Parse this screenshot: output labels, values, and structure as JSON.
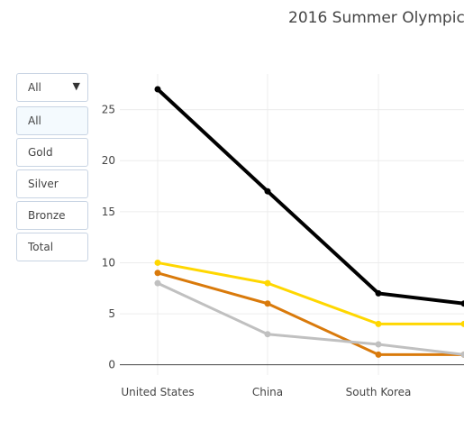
{
  "title": "2016 Summer Olympic",
  "dropdown": {
    "selected": "All",
    "options": [
      "All",
      "Gold",
      "Silver",
      "Bronze",
      "Total"
    ]
  },
  "chart_data": {
    "type": "line",
    "categories": [
      "United States",
      "China",
      "South Korea",
      ""
    ],
    "ylim": [
      -1,
      28.5
    ],
    "yticks": [
      0,
      5,
      10,
      15,
      20,
      25
    ],
    "grid": true,
    "series": [
      {
        "color": "#000000",
        "values": [
          27,
          17,
          7,
          6
        ]
      },
      {
        "color": "#ffd700",
        "values": [
          10,
          8,
          4,
          4
        ]
      },
      {
        "color": "#d97a0b",
        "values": [
          9,
          6,
          1,
          1
        ]
      },
      {
        "color": "#c0c0c0",
        "values": [
          8,
          3,
          2,
          1
        ]
      }
    ]
  }
}
